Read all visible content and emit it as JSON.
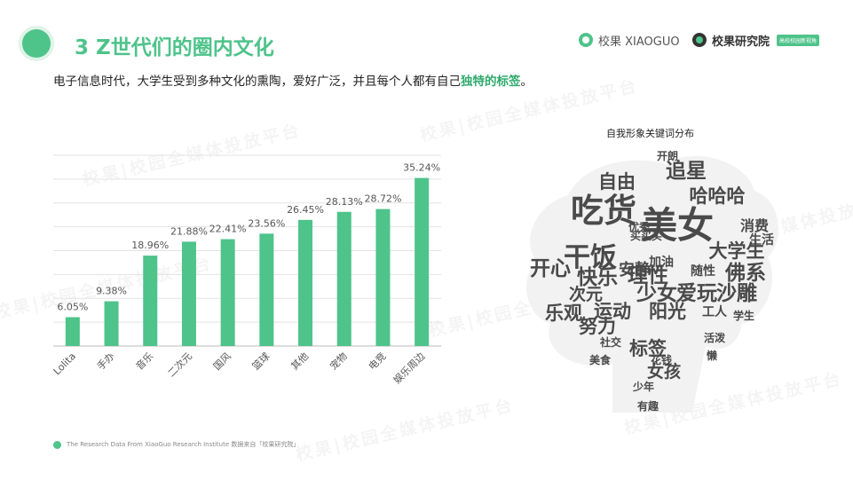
{
  "header": {
    "title": "3 Z世代们的圈内文化",
    "subtitle_main": "电子信息时代，大学生受到多种文化的熏陶，爱好广泛，并且每个人都有自己",
    "subtitle_highlight": "独特的标签",
    "subtitle_end": "。"
  },
  "brands": {
    "brand1": "校果 XIAOGUO",
    "brand2": "校果研究院",
    "brand2_tag": "高校校园新视角"
  },
  "footer": {
    "text": "The Research Data  From XiaoGuo Research Institute 数据来自「校果研究院」"
  },
  "watermark": "校果|校园全媒体投放平台",
  "colors": {
    "accent": "#4ec38a",
    "highlight": "#2eaa6d",
    "cloud": "#4a4a4a"
  },
  "chart_data": {
    "type": "bar",
    "categories": [
      "Lolita",
      "手办",
      "音乐",
      "二次元",
      "国风",
      "篮球",
      "其他",
      "宠物",
      "电竞",
      "娱乐周边"
    ],
    "values": [
      6.05,
      9.38,
      18.96,
      21.88,
      22.41,
      23.56,
      26.45,
      28.13,
      28.72,
      35.24
    ],
    "data_labels": [
      "6.05%",
      "9.38%",
      "18.96%",
      "21.88%",
      "22.41%",
      "23.56%",
      "26.45%",
      "28.13%",
      "28.72%",
      "35.24%"
    ],
    "ylim": [
      0,
      40
    ],
    "grid": true,
    "title": "",
    "xlabel": "",
    "ylabel": ""
  },
  "word_cloud": {
    "title": "自我形象关键词分布",
    "words": [
      {
        "text": "美女",
        "weight": 10
      },
      {
        "text": "吃货",
        "weight": 9
      },
      {
        "text": "干饭",
        "weight": 7
      },
      {
        "text": "追星",
        "weight": 5
      },
      {
        "text": "哈哈哈",
        "weight": 4.5
      },
      {
        "text": "自由",
        "weight": 4.5
      },
      {
        "text": "开心",
        "weight": 5
      },
      {
        "text": "快乐",
        "weight": 5
      },
      {
        "text": "理性",
        "weight": 5
      },
      {
        "text": "大学生",
        "weight": 4.5
      },
      {
        "text": "佛系",
        "weight": 5
      },
      {
        "text": "少女",
        "weight": 5
      },
      {
        "text": "爱玩",
        "weight": 5
      },
      {
        "text": "沙雕",
        "weight": 5
      },
      {
        "text": "乐观",
        "weight": 4.5
      },
      {
        "text": "运动",
        "weight": 4.5
      },
      {
        "text": "阳光",
        "weight": 4.5
      },
      {
        "text": "努力",
        "weight": 4.5
      },
      {
        "text": "标签",
        "weight": 4.5
      },
      {
        "text": "女孩",
        "weight": 4
      },
      {
        "text": "次元",
        "weight": 4
      },
      {
        "text": "安静",
        "weight": 3.5
      },
      {
        "text": "消费",
        "weight": 3
      },
      {
        "text": "生活",
        "weight": 2.5
      },
      {
        "text": "加油",
        "weight": 2.5
      },
      {
        "text": "随性",
        "weight": 2.5
      },
      {
        "text": "工人",
        "weight": 2.5
      },
      {
        "text": "少年",
        "weight": 2
      },
      {
        "text": "有趣",
        "weight": 2
      },
      {
        "text": "活泼",
        "weight": 2
      },
      {
        "text": "懒",
        "weight": 2
      },
      {
        "text": "社交",
        "weight": 2
      },
      {
        "text": "学生",
        "weight": 2
      },
      {
        "text": "美食",
        "weight": 2
      },
      {
        "text": "花钱",
        "weight": 2
      },
      {
        "text": "开朗",
        "weight": 2
      },
      {
        "text": "买买买",
        "weight": 2
      },
      {
        "text": "优秀",
        "weight": 2
      }
    ]
  }
}
